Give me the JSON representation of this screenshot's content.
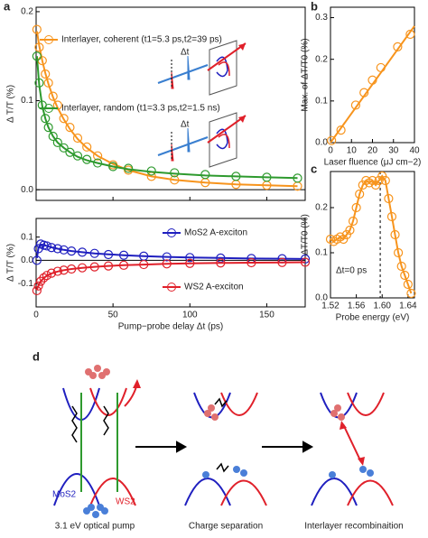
{
  "chart_data": [
    {
      "panel": "a",
      "type": "scatter",
      "ylabel": "Δ T/T (%)",
      "xlim": [
        0,
        175
      ],
      "xticks": [
        0,
        50,
        100,
        150
      ],
      "ylim": [
        -0.012,
        0.205
      ],
      "yticks": [
        {
          "value": 0,
          "label": "0.0"
        },
        0.1,
        0.2
      ],
      "x": [
        0.5,
        2,
        4,
        6,
        8,
        11,
        14,
        18,
        22,
        27,
        33,
        40,
        50,
        60,
        75,
        90,
        110,
        130,
        150,
        170
      ],
      "series": [
        {
          "name": "Interlayer, coherent (t1=5.3 ps,t2=39 ps)",
          "color": "#f7941d",
          "style": "markers",
          "values": [
            0.18,
            0.16,
            0.145,
            0.13,
            0.12,
            0.105,
            0.095,
            0.08,
            0.07,
            0.058,
            0.048,
            0.038,
            0.028,
            0.022,
            0.015,
            0.011,
            0.008,
            0.006,
            0.005,
            0.004
          ]
        },
        {
          "color": "#f7941d",
          "style": "line",
          "values": [
            0.178,
            0.162,
            0.145,
            0.131,
            0.119,
            0.104,
            0.092,
            0.079,
            0.068,
            0.057,
            0.047,
            0.038,
            0.029,
            0.022,
            0.015,
            0.011,
            0.008,
            0.006,
            0.005,
            0.004
          ]
        },
        {
          "name": "Interlayer, random (t1=3.3 ps,t2=1.5 ns)",
          "color": "#2e9a2e",
          "style": "markers",
          "values": [
            0.15,
            0.12,
            0.095,
            0.08,
            0.07,
            0.06,
            0.053,
            0.047,
            0.042,
            0.038,
            0.034,
            0.03,
            0.026,
            0.024,
            0.021,
            0.019,
            0.017,
            0.015,
            0.014,
            0.013
          ]
        },
        {
          "color": "#2e9a2e",
          "style": "line",
          "values": [
            0.15,
            0.118,
            0.094,
            0.08,
            0.07,
            0.06,
            0.053,
            0.047,
            0.042,
            0.037,
            0.033,
            0.03,
            0.026,
            0.023,
            0.02,
            0.018,
            0.016,
            0.015,
            0.014,
            0.013
          ]
        }
      ],
      "annotations": [
        "Δt",
        "Δt"
      ]
    },
    {
      "type": "scatter",
      "ylabel": "Δ T/T (%)",
      "xlabel": "Pump−probe delay Δt (ps)",
      "xlim": [
        0,
        175
      ],
      "xticks": [
        0,
        50,
        100,
        150
      ],
      "ylim": [
        -0.2,
        0.18
      ],
      "yticks": [
        -0.1,
        {
          "value": 0,
          "label": "0.0"
        },
        0.1
      ],
      "x": [
        0.5,
        1.5,
        3,
        5,
        7,
        10,
        14,
        18,
        23,
        30,
        38,
        47,
        57,
        70,
        85,
        100,
        120,
        140,
        160,
        175
      ],
      "series": [
        {
          "name": "MoS2 A-exciton",
          "color": "#1f1fbf",
          "style": "markers",
          "values": [
            0.0,
            0.05,
            0.07,
            0.065,
            0.062,
            0.055,
            0.05,
            0.045,
            0.04,
            0.035,
            0.03,
            0.025,
            0.022,
            0.018,
            0.015,
            0.012,
            0.01,
            0.008,
            0.007,
            0.006
          ]
        },
        {
          "color": "#1f1fbf",
          "style": "line",
          "values": [
            0.01,
            0.055,
            0.068,
            0.066,
            0.062,
            0.056,
            0.05,
            0.045,
            0.04,
            0.035,
            0.03,
            0.026,
            0.022,
            0.018,
            0.015,
            0.012,
            0.01,
            0.008,
            0.007,
            0.006
          ]
        },
        {
          "name": "WS2 A-exciton",
          "color": "#e0202a",
          "style": "markers",
          "values": [
            -0.13,
            -0.11,
            -0.09,
            -0.075,
            -0.065,
            -0.055,
            -0.047,
            -0.042,
            -0.037,
            -0.032,
            -0.028,
            -0.024,
            -0.021,
            -0.018,
            -0.015,
            -0.013,
            -0.011,
            -0.01,
            -0.009,
            -0.008
          ]
        },
        {
          "color": "#e0202a",
          "style": "line",
          "values": [
            -0.125,
            -0.108,
            -0.09,
            -0.076,
            -0.066,
            -0.056,
            -0.048,
            -0.042,
            -0.037,
            -0.032,
            -0.028,
            -0.024,
            -0.021,
            -0.018,
            -0.015,
            -0.013,
            -0.011,
            -0.01,
            -0.009,
            -0.008
          ]
        }
      ]
    },
    {
      "panel": "b",
      "type": "scatter",
      "ylabel": "Max. of ΔT/T0 (%)",
      "xlabel": "Laser fluence (μJ cm−2)",
      "xlim": [
        0,
        40
      ],
      "xticks": [
        0,
        10,
        20,
        30,
        40
      ],
      "ylim": [
        0,
        0.325
      ],
      "yticks": [
        {
          "value": 0,
          "label": "0.0"
        },
        0.1,
        0.2,
        0.3
      ],
      "x": [
        0.5,
        5,
        12,
        16,
        20,
        24,
        32,
        38
      ],
      "series": [
        {
          "color": "#f7941d",
          "style": "line",
          "x": [
            0,
            40
          ],
          "values": [
            0,
            0.28
          ]
        },
        {
          "color": "#f7941d",
          "style": "markers",
          "values": [
            0.005,
            0.03,
            0.09,
            0.12,
            0.15,
            0.18,
            0.23,
            0.26
          ]
        }
      ]
    },
    {
      "panel": "c",
      "type": "scatter",
      "ylabel": "ΔT/T0 (%)",
      "xlabel": "Probe energy (eV)",
      "xlim": [
        1.52,
        1.65
      ],
      "xticks": [
        1.52,
        1.56,
        {
          "value": 1.6,
          "label": "1.60"
        },
        1.64
      ],
      "ylim": [
        0,
        0.28
      ],
      "yticks": [
        {
          "value": 0,
          "label": "0.0"
        },
        0.1,
        0.2
      ],
      "x": [
        1.52,
        1.525,
        1.53,
        1.535,
        1.54,
        1.545,
        1.55,
        1.555,
        1.56,
        1.565,
        1.57,
        1.575,
        1.58,
        1.585,
        1.59,
        1.595,
        1.6,
        1.605,
        1.61,
        1.615,
        1.62,
        1.625,
        1.63,
        1.635,
        1.64,
        1.645
      ],
      "series": [
        {
          "color": "#f7941d",
          "style": "both",
          "values": [
            0.13,
            0.125,
            0.13,
            0.135,
            0.13,
            0.14,
            0.15,
            0.17,
            0.2,
            0.23,
            0.25,
            0.26,
            0.255,
            0.26,
            0.25,
            0.26,
            0.27,
            0.26,
            0.22,
            0.18,
            0.14,
            0.1,
            0.07,
            0.05,
            0.03,
            0.01
          ]
        }
      ],
      "vline": 1.597,
      "annotations": [
        "Δt=0 ps"
      ]
    }
  ],
  "diagram": {
    "panel": "d",
    "captions": [
      "3.1 eV optical pump",
      "Charge separation",
      "Interlayer recombinaition"
    ],
    "labels": [
      "MoS2",
      "WS2"
    ]
  }
}
